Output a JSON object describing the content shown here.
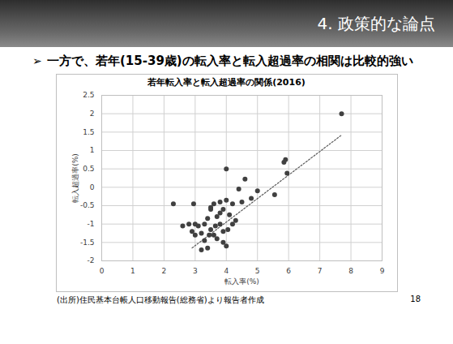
{
  "slide": {
    "header": "4. 政策的な論点",
    "bullet": "一方で、若年(15-39歳)の転入率と転入超過率の相関は比較的強い",
    "source": "(出所)住民基本台帳人口移動報告(総務省)より報告者作成",
    "page_number": 18
  },
  "chart_data": {
    "type": "scatter",
    "title": "若年転入率と転入超過率の関係(2016)",
    "x_label": "転入率(%)",
    "y_label": "転入超過率(%)",
    "x": [
      7.7,
      5.9,
      5.85,
      5.95,
      5.55,
      4.0,
      4.6,
      4.4,
      5.0,
      4.8,
      4.5,
      4.2,
      4.0,
      3.8,
      3.9,
      3.6,
      3.5,
      4.1,
      4.3,
      3.7,
      3.4,
      3.3,
      3.1,
      3.0,
      3.0,
      3.2,
      3.5,
      3.8,
      3.9,
      4.05,
      3.6,
      3.7,
      3.9,
      4.0,
      3.2,
      3.4,
      2.3,
      2.6,
      2.8,
      2.9,
      3.5,
      4.2,
      3.65,
      3.45,
      2.95,
      3.8,
      3.3
    ],
    "values": [
      2.0,
      0.75,
      0.68,
      0.38,
      -0.2,
      0.5,
      0.22,
      -0.05,
      -0.1,
      -0.3,
      -0.4,
      -0.45,
      -0.35,
      -0.4,
      -0.6,
      -0.45,
      -0.6,
      -0.75,
      -0.9,
      -0.8,
      -0.85,
      -1.0,
      -1.05,
      -1.0,
      -1.3,
      -1.25,
      -1.15,
      -1.0,
      -1.2,
      -1.15,
      -1.3,
      -1.4,
      -1.5,
      -1.6,
      -1.7,
      -1.65,
      -0.45,
      -1.05,
      -1.0,
      -1.2,
      -0.55,
      -1.0,
      -1.05,
      -1.3,
      -0.45,
      -0.7,
      -1.45
    ],
    "color": "#404040",
    "marker": "circle",
    "xlim": [
      0,
      9
    ],
    "xticks": [
      0,
      1,
      2,
      3,
      4,
      5,
      6,
      7,
      8,
      9
    ],
    "ylim": [
      -2,
      2.5
    ],
    "yticks": [
      -2,
      -1.5,
      -1,
      -0.5,
      0,
      0.5,
      1,
      1.5,
      2,
      2.5
    ],
    "grid": true,
    "trendline": {
      "x": [
        2.9,
        7.7
      ],
      "y": [
        -1.65,
        1.42
      ],
      "color": "#595959",
      "line_style": "dotted"
    }
  }
}
